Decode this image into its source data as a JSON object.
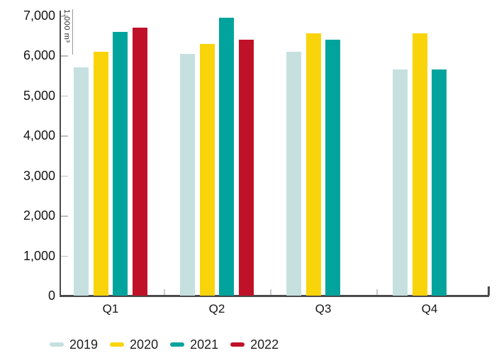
{
  "chart_data": {
    "type": "bar",
    "title": "",
    "unit_label": "1,000 m³",
    "categories": [
      "Q1",
      "Q2",
      "Q3",
      "Q4"
    ],
    "series": [
      {
        "name": "2019",
        "color": "#c6e0e0",
        "values": [
          5700,
          6050,
          6100,
          5650
        ]
      },
      {
        "name": "2020",
        "color": "#f9d40a",
        "values": [
          6100,
          6300,
          6550,
          6550
        ]
      },
      {
        "name": "2021",
        "color": "#00a49c",
        "values": [
          6600,
          6950,
          6400,
          5650
        ]
      },
      {
        "name": "2022",
        "color": "#bf1228",
        "values": [
          6700,
          6400,
          null,
          null
        ]
      }
    ],
    "ylim": [
      0,
      7000
    ],
    "yticks": {
      "values": [
        0,
        1000,
        2000,
        3000,
        4000,
        5000,
        6000,
        7000
      ],
      "labels": [
        "0",
        "1,000",
        "2,000",
        "3,000",
        "4,000",
        "5,000",
        "6,000",
        "7,000"
      ]
    },
    "grid": false,
    "legend_position": "bottom-left",
    "axis_color": "#4a4a4a",
    "text_color": "#141414"
  }
}
